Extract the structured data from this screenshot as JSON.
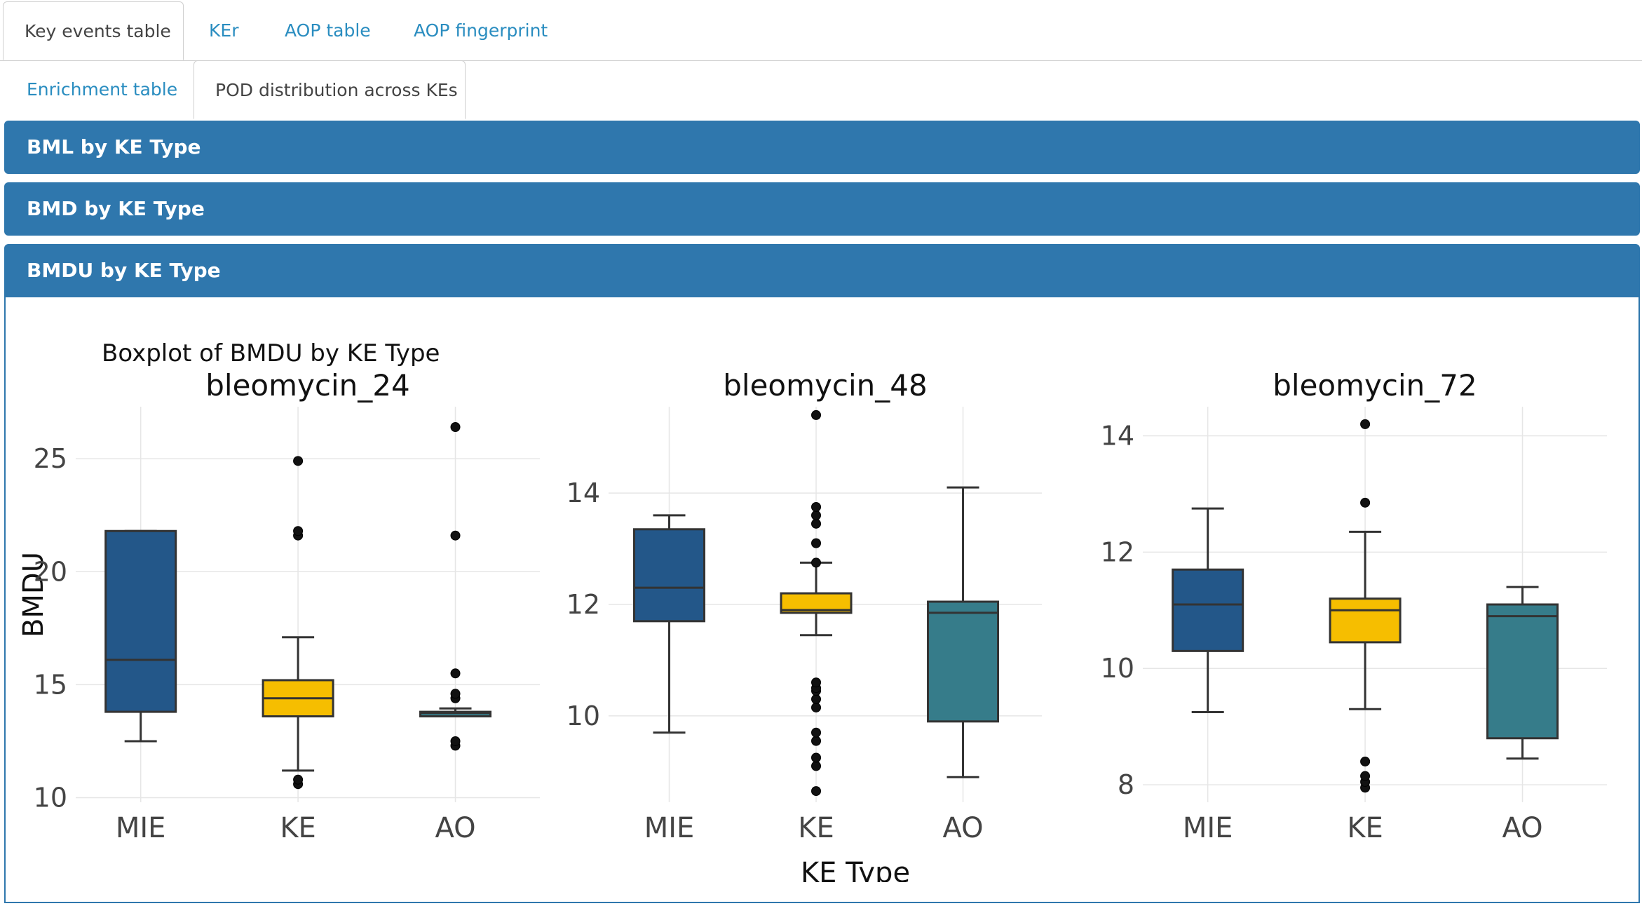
{
  "tabs_row1": [
    {
      "label": "Key events table",
      "active": true
    },
    {
      "label": "KEr",
      "active": false
    },
    {
      "label": "AOP table",
      "active": false
    },
    {
      "label": "AOP fingerprint",
      "active": false
    }
  ],
  "tabs_row2": [
    {
      "label": "Enrichment table",
      "active": false
    },
    {
      "label": "POD distribution across KEs",
      "active": true
    }
  ],
  "panels": {
    "bml": "BML by KE Type",
    "bmd": "BMD by KE Type",
    "bmdu": "BMDU by KE Type"
  },
  "colors": {
    "MIE": "#235789",
    "KE": "#f6be00",
    "AO": "#367c8a",
    "header": "#2f77ad",
    "link": "#2a8dc0"
  },
  "chart_data": {
    "type": "boxplot",
    "title": "Boxplot of BMDU by KE Type",
    "xlabel": "KE Type",
    "ylabel": "BMDU",
    "categories": [
      "MIE",
      "KE",
      "AO"
    ],
    "panels": [
      {
        "name": "bleomycin_24",
        "ylim": [
          9.8,
          27.3
        ],
        "yticks": [
          10,
          15,
          20,
          25
        ],
        "boxes": [
          {
            "category": "MIE",
            "whisker_low": 12.5,
            "q1": 13.8,
            "median": 16.1,
            "q3": 21.8,
            "whisker_high": 21.8,
            "outliers": []
          },
          {
            "category": "KE",
            "whisker_low": 11.2,
            "q1": 13.6,
            "median": 14.4,
            "q3": 15.2,
            "whisker_high": 17.1,
            "outliers": [
              10.6,
              10.8,
              21.6,
              21.8,
              24.9
            ]
          },
          {
            "category": "AO",
            "whisker_low": 13.6,
            "q1": 13.6,
            "median": 13.75,
            "q3": 13.8,
            "whisker_high": 13.95,
            "outliers": [
              12.3,
              12.5,
              14.4,
              14.6,
              15.5,
              21.6,
              26.4
            ]
          }
        ]
      },
      {
        "name": "bleomycin_48",
        "ylim": [
          8.45,
          15.55
        ],
        "yticks": [
          10,
          12,
          14
        ],
        "boxes": [
          {
            "category": "MIE",
            "whisker_low": 9.7,
            "q1": 11.7,
            "median": 12.3,
            "q3": 13.35,
            "whisker_high": 13.6,
            "outliers": []
          },
          {
            "category": "KE",
            "whisker_low": 11.45,
            "q1": 11.85,
            "median": 11.9,
            "q3": 12.2,
            "whisker_high": 12.75,
            "outliers": [
              8.65,
              9.1,
              9.25,
              9.55,
              9.7,
              10.15,
              10.3,
              10.45,
              10.5,
              10.6,
              12.75,
              13.1,
              13.45,
              13.6,
              13.75,
              15.4
            ]
          },
          {
            "category": "AO",
            "whisker_low": 8.9,
            "q1": 9.9,
            "median": 11.85,
            "q3": 12.05,
            "whisker_high": 14.1,
            "outliers": []
          }
        ]
      },
      {
        "name": "bleomycin_72",
        "ylim": [
          7.7,
          14.5
        ],
        "yticks": [
          8,
          10,
          12,
          14
        ],
        "boxes": [
          {
            "category": "MIE",
            "whisker_low": 9.25,
            "q1": 10.3,
            "median": 11.1,
            "q3": 11.7,
            "whisker_high": 12.75,
            "outliers": []
          },
          {
            "category": "KE",
            "whisker_low": 9.3,
            "q1": 10.45,
            "median": 11.0,
            "q3": 11.2,
            "whisker_high": 12.35,
            "outliers": [
              7.95,
              8.05,
              8.15,
              8.4,
              12.85,
              14.2
            ]
          },
          {
            "category": "AO",
            "whisker_low": 8.45,
            "q1": 8.8,
            "median": 10.9,
            "q3": 11.1,
            "whisker_high": 11.4,
            "outliers": []
          }
        ]
      }
    ]
  }
}
